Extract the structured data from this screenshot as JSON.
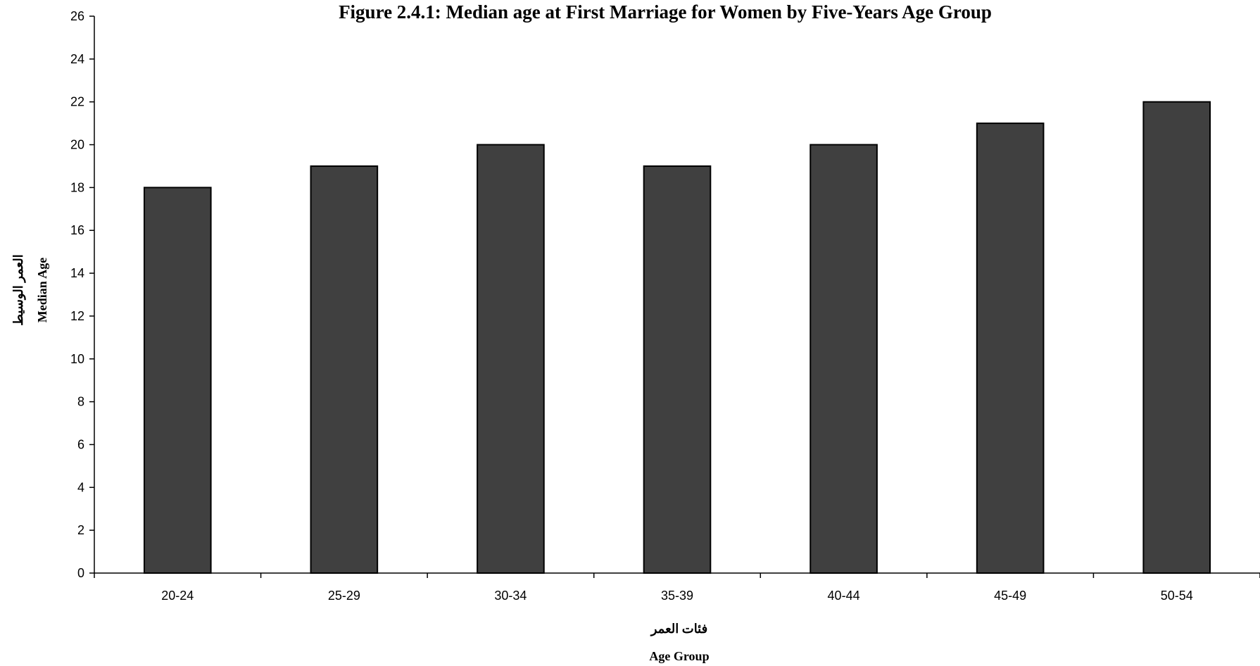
{
  "chart_data": {
    "type": "bar",
    "title": "Figure 2.4.1: Median age at First Marriage for Women by Five-Years Age Group",
    "xlabel_ar": "فئات العمر",
    "xlabel": "Age Group",
    "ylabel_ar": "العمر الوسيط",
    "ylabel": "Median Age",
    "categories": [
      "20-24",
      "25-29",
      "30-34",
      "35-39",
      "40-44",
      "45-49",
      "50-54"
    ],
    "values": [
      18,
      19,
      20,
      19,
      20,
      21,
      22
    ],
    "ylim": [
      0,
      26
    ],
    "yticks": [
      0,
      2,
      4,
      6,
      8,
      10,
      12,
      14,
      16,
      18,
      20,
      22,
      24,
      26
    ],
    "grid": false,
    "legend": "none",
    "bar_color": "#404040",
    "bar_edge_color": "#000000"
  }
}
